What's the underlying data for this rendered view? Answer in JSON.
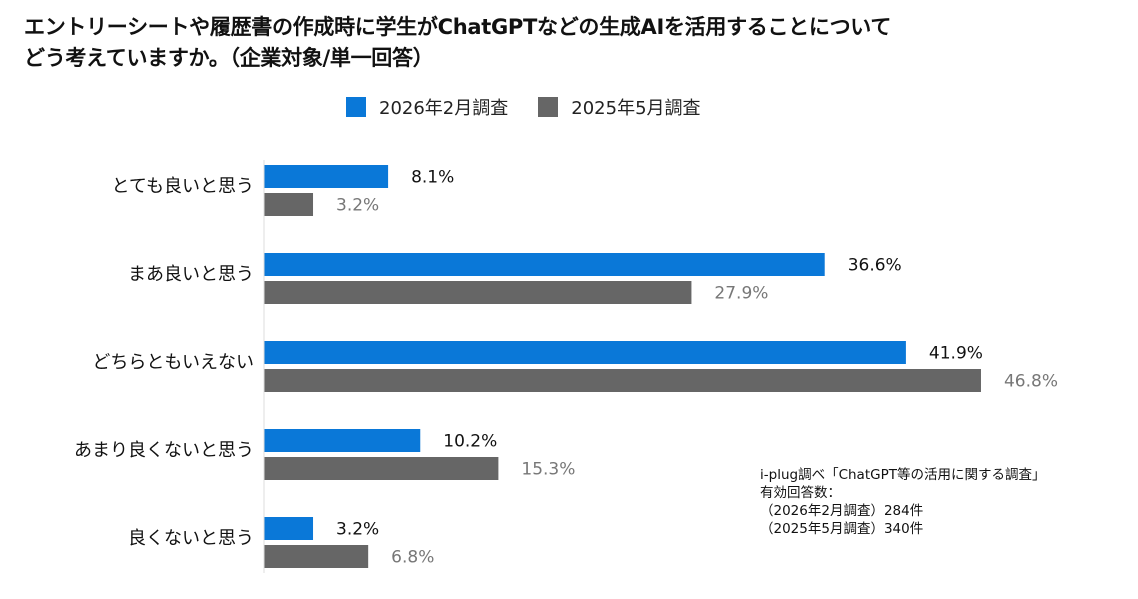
{
  "title": {
    "line1": "エントリーシートや履歴書の作成時に学生がChatGPTなどの生成AIを活用することについて",
    "line2": "どう考えていますか。（企業対象/単一回答）"
  },
  "legend": [
    {
      "label": "2026年2月調査",
      "color": "#0a78d8"
    },
    {
      "label": "2025年5月調査",
      "color": "#666666"
    }
  ],
  "chart_data": {
    "type": "bar",
    "orientation": "horizontal",
    "title": "エントリーシートや履歴書の作成時に学生がChatGPTなどの生成AIを活用することについてどう考えていますか。（企業対象/単一回答）",
    "categories": [
      "とても良いと思う",
      "まあ良いと思う",
      "どちらともいえない",
      "あまり良くないと思う",
      "良くないと思う"
    ],
    "series": [
      {
        "name": "2026年2月調査",
        "values": [
          8.1,
          36.6,
          41.9,
          10.2,
          3.2
        ],
        "labels": [
          "8.1%",
          "36.6%",
          "41.9%",
          "10.2%",
          "3.2%"
        ],
        "color": "#0a78d8",
        "label_color": "#111111"
      },
      {
        "name": "2025年5月調査",
        "values": [
          3.2,
          27.9,
          46.8,
          15.3,
          6.8
        ],
        "labels": [
          "3.2%",
          "27.9%",
          "46.8%",
          "15.3%",
          "6.8%"
        ],
        "color": "#666666",
        "label_color": "#777777"
      }
    ],
    "xlim": [
      0,
      47
    ],
    "grid": false,
    "legend_position": "top"
  },
  "source": {
    "line1": "i-plug調べ「ChatGPT等の活用に関する調査」",
    "line2": "有効回答数：",
    "line3": "（2026年2月調査）284件",
    "line4": "（2025年5月調査）340件"
  }
}
